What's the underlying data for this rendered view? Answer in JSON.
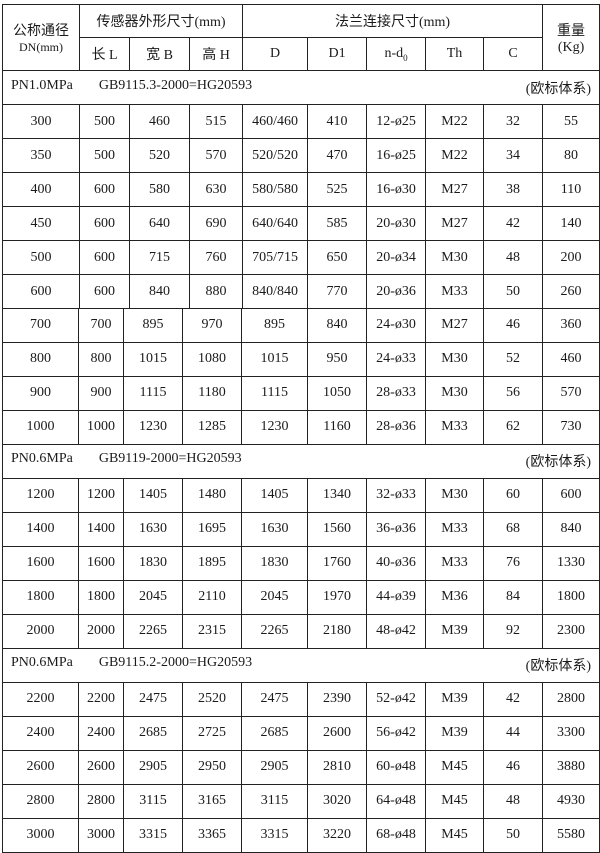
{
  "header": {
    "dn_label": "公称通径",
    "dn_unit": "DN(mm)",
    "sensor_group": "传感器外形尺寸(mm)",
    "flange_group": "法兰连接尺寸(mm)",
    "weight_label": "重量",
    "weight_unit": "(Kg)",
    "columns": [
      "长 L",
      "宽 B",
      "高 H",
      "D",
      "D1",
      "n-d",
      "Th",
      "C"
    ],
    "nd_subscript": "0"
  },
  "sections": [
    {
      "pressure": "PN1.0MPa",
      "standard": "GB9115.3-2000=HG20593",
      "system": "(欧标体系)"
    },
    {
      "pressure": "PN0.6MPa",
      "standard": "GB9119-2000=HG20593",
      "system": "(欧标体系)"
    },
    {
      "pressure": "PN0.6MPa",
      "standard": "GB9115.2-2000=HG20593",
      "system": "(欧标体系)"
    }
  ],
  "rows_a": [
    [
      "300",
      "500",
      "460",
      "515",
      "460/460",
      "410",
      "12-ø25",
      "M22",
      "32",
      "55"
    ],
    [
      "350",
      "500",
      "520",
      "570",
      "520/520",
      "470",
      "16-ø25",
      "M22",
      "34",
      "80"
    ],
    [
      "400",
      "600",
      "580",
      "630",
      "580/580",
      "525",
      "16-ø30",
      "M27",
      "38",
      "110"
    ],
    [
      "450",
      "600",
      "640",
      "690",
      "640/640",
      "585",
      "20-ø30",
      "M27",
      "42",
      "140"
    ],
    [
      "500",
      "600",
      "715",
      "760",
      "705/715",
      "650",
      "20-ø34",
      "M30",
      "48",
      "200"
    ],
    [
      "600",
      "600",
      "840",
      "880",
      "840/840",
      "770",
      "20-ø36",
      "M33",
      "50",
      "260"
    ]
  ],
  "rows_b": [
    [
      "700",
      "700",
      "895",
      "970",
      "895",
      "840",
      "24-ø30",
      "M27",
      "46",
      "360"
    ],
    [
      "800",
      "800",
      "1015",
      "1080",
      "1015",
      "950",
      "24-ø33",
      "M30",
      "52",
      "460"
    ],
    [
      "900",
      "900",
      "1115",
      "1180",
      "1115",
      "1050",
      "28-ø33",
      "M30",
      "56",
      "570"
    ],
    [
      "1000",
      "1000",
      "1230",
      "1285",
      "1230",
      "1160",
      "28-ø36",
      "M33",
      "62",
      "730"
    ]
  ],
  "rows_c": [
    [
      "1200",
      "1200",
      "1405",
      "1480",
      "1405",
      "1340",
      "32-ø33",
      "M30",
      "60",
      "600"
    ],
    [
      "1400",
      "1400",
      "1630",
      "1695",
      "1630",
      "1560",
      "36-ø36",
      "M33",
      "68",
      "840"
    ],
    [
      "1600",
      "1600",
      "1830",
      "1895",
      "1830",
      "1760",
      "40-ø36",
      "M33",
      "76",
      "1330"
    ],
    [
      "1800",
      "1800",
      "2045",
      "2110",
      "2045",
      "1970",
      "44-ø39",
      "M36",
      "84",
      "1800"
    ],
    [
      "2000",
      "2000",
      "2265",
      "2315",
      "2265",
      "2180",
      "48-ø42",
      "M39",
      "92",
      "2300"
    ]
  ],
  "rows_d": [
    [
      "2200",
      "2200",
      "2475",
      "2520",
      "2475",
      "2390",
      "52-ø42",
      "M39",
      "42",
      "2800"
    ],
    [
      "2400",
      "2400",
      "2685",
      "2725",
      "2685",
      "2600",
      "56-ø42",
      "M39",
      "44",
      "3300"
    ],
    [
      "2600",
      "2600",
      "2905",
      "2950",
      "2905",
      "2810",
      "60-ø48",
      "M45",
      "46",
      "3880"
    ],
    [
      "2800",
      "2800",
      "3115",
      "3165",
      "3115",
      "3020",
      "64-ø48",
      "M45",
      "48",
      "4930"
    ],
    [
      "3000",
      "3000",
      "3315",
      "3365",
      "3315",
      "3220",
      "68-ø48",
      "M45",
      "50",
      "5580"
    ]
  ]
}
